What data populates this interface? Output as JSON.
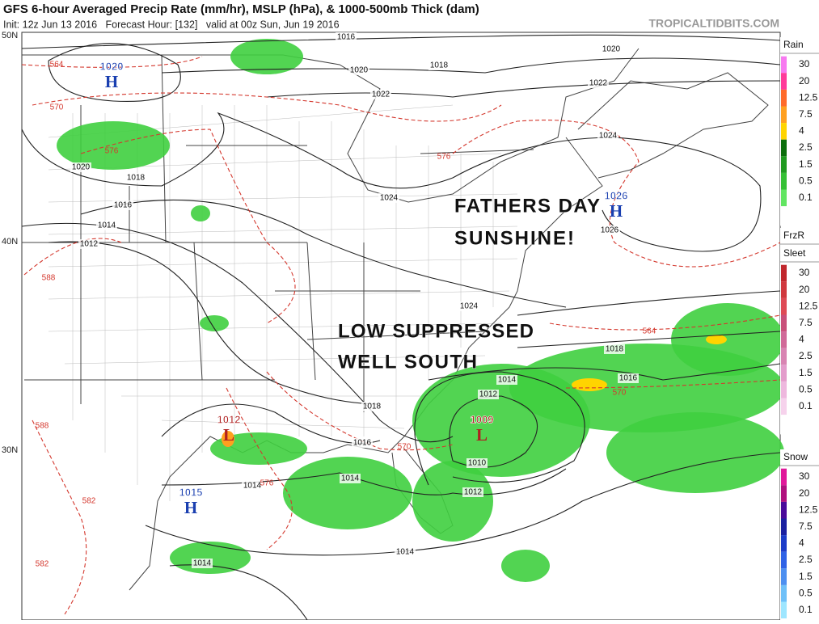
{
  "header": {
    "title": "GFS 6-hour Averaged Precip Rate (mm/hr), MSLP (hPa), & 1000-500mb Thick (dam)",
    "subtitle": "Init: 12z Jun 13 2016   Forecast Hour: [132]   valid at 00z Sun, Jun 19 2016",
    "source": "TROPICALTIDBITS.COM"
  },
  "map": {
    "lat_labels": [
      "50N",
      "40N",
      "30N"
    ],
    "centers": [
      {
        "letter": "H",
        "pressure": 1020,
        "color": "#1a3fb0"
      },
      {
        "letter": "H",
        "pressure": 1026,
        "color": "#1a3fb0"
      },
      {
        "letter": "L",
        "pressure": 1012,
        "color": "#b02020"
      },
      {
        "letter": "L",
        "pressure": 1009,
        "color": "#b02020"
      },
      {
        "letter": "H",
        "pressure": 1015,
        "color": "#1a3fb0"
      }
    ],
    "isobar_labels": [
      1016,
      1018,
      1020,
      1020,
      1022,
      1022,
      1024,
      1020,
      1018,
      1016,
      1014,
      1012,
      1024,
      1026,
      1024,
      1018,
      1016,
      1014,
      1012,
      1018,
      1016,
      1010,
      1012,
      1014,
      1014,
      1014,
      1014
    ],
    "thickness_labels": [
      564,
      570,
      576,
      576,
      588,
      564,
      570,
      570,
      576,
      582,
      588,
      582
    ],
    "annotations": [
      "FATHERS DAY",
      "SUNSHINE!",
      "LOW SUPPRESSED",
      "WELL SOUTH"
    ]
  },
  "legend": [
    {
      "titles": [
        "Rain"
      ],
      "levels": [
        30,
        20,
        12.5,
        7.5,
        4,
        2.5,
        1.5,
        0.5,
        0.1
      ],
      "colors": [
        "#f77af0",
        "#ff3a9a",
        "#ff6a2a",
        "#ffa020",
        "#ffd400",
        "#0b6e0b",
        "#1f9a1f",
        "#35c035",
        "#62e562"
      ]
    },
    {
      "titles": [
        "FrzR",
        "Sleet"
      ],
      "levels": [
        30,
        20,
        12.5,
        7.5,
        4,
        2.5,
        1.5,
        0.5,
        0.1
      ],
      "colors": [
        "#c0262c",
        "#d0383e",
        "#de4a55",
        "#c8507a",
        "#d06a98",
        "#d884b2",
        "#e39ccb",
        "#eeb8de",
        "#f6d2ec"
      ]
    },
    {
      "titles": [
        "Snow"
      ],
      "levels": [
        30,
        20,
        12.5,
        7.5,
        4,
        2.5,
        1.5,
        0.5,
        0.1
      ],
      "colors": [
        "#e0189a",
        "#b0107e",
        "#4a0a9a",
        "#1a20a0",
        "#1c3cc8",
        "#2f62e6",
        "#4d8ff0",
        "#6fc0f8",
        "#9ee6ff"
      ]
    }
  ]
}
